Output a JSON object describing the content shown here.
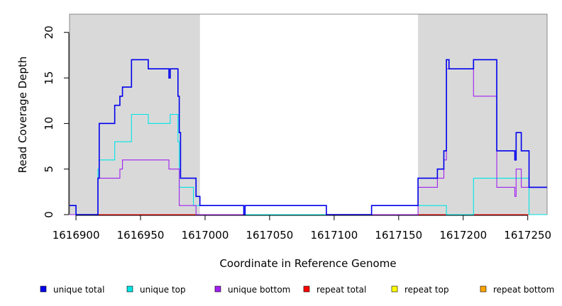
{
  "chart_data": {
    "type": "line",
    "title": "",
    "xlabel": "Coordinate in Reference Genome",
    "ylabel": "Read Coverage Depth",
    "xlim": [
      1616895,
      1617265
    ],
    "ylim": [
      0,
      22
    ],
    "x_ticks": [
      1616900,
      1616950,
      1617000,
      1617050,
      1617100,
      1617150,
      1617200,
      1617250
    ],
    "x_tick_labels": [
      "1616900",
      "1616950",
      "1617000",
      "1617050",
      "1617100",
      "1617150",
      "1617200",
      "1617250"
    ],
    "y_ticks": [
      0,
      5,
      10,
      15,
      20
    ],
    "y_tick_labels": [
      "0",
      "5",
      "10",
      "15",
      "20"
    ],
    "grid": false,
    "legend_position": "bottom",
    "shaded_regions": [
      {
        "x_start": 1616895,
        "x_end": 1616996,
        "color": "#d9d9d9"
      },
      {
        "x_start": 1617165,
        "x_end": 1617265,
        "color": "#d9d9d9"
      }
    ],
    "series": [
      {
        "name": "unique total",
        "color": "#0000ee",
        "step_points": [
          [
            1616895,
            1
          ],
          [
            1616900,
            1
          ],
          [
            1616900,
            0
          ],
          [
            1616917,
            0
          ],
          [
            1616917,
            4
          ],
          [
            1616918,
            4
          ],
          [
            1616918,
            10
          ],
          [
            1616930,
            10
          ],
          [
            1616930,
            12
          ],
          [
            1616934,
            12
          ],
          [
            1616934,
            13
          ],
          [
            1616936,
            13
          ],
          [
            1616936,
            14
          ],
          [
            1616943,
            14
          ],
          [
            1616943,
            17
          ],
          [
            1616956,
            17
          ],
          [
            1616956,
            16
          ],
          [
            1616972,
            16
          ],
          [
            1616972,
            15
          ],
          [
            1616973,
            15
          ],
          [
            1616973,
            16
          ],
          [
            1616979,
            16
          ],
          [
            1616979,
            13
          ],
          [
            1616980,
            13
          ],
          [
            1616980,
            9
          ],
          [
            1616981,
            9
          ],
          [
            1616981,
            4
          ],
          [
            1616993,
            4
          ],
          [
            1616993,
            2
          ],
          [
            1616996,
            2
          ],
          [
            1616996,
            1
          ],
          [
            1617030,
            1
          ],
          [
            1617030,
            0
          ],
          [
            1617031,
            0
          ],
          [
            1617031,
            1
          ],
          [
            1617094,
            1
          ],
          [
            1617094,
            0
          ],
          [
            1617129,
            0
          ],
          [
            1617129,
            1
          ],
          [
            1617165,
            1
          ],
          [
            1617165,
            4
          ],
          [
            1617180,
            4
          ],
          [
            1617180,
            5
          ],
          [
            1617185,
            5
          ],
          [
            1617185,
            7
          ],
          [
            1617187,
            7
          ],
          [
            1617187,
            17
          ],
          [
            1617189,
            17
          ],
          [
            1617189,
            16
          ],
          [
            1617208,
            16
          ],
          [
            1617208,
            17
          ],
          [
            1617226,
            17
          ],
          [
            1617226,
            7
          ],
          [
            1617240,
            7
          ],
          [
            1617240,
            6
          ],
          [
            1617241,
            6
          ],
          [
            1617241,
            9
          ],
          [
            1617245,
            9
          ],
          [
            1617245,
            7
          ],
          [
            1617251,
            7
          ],
          [
            1617251,
            3
          ],
          [
            1617265,
            3
          ]
        ]
      },
      {
        "name": "unique top",
        "color": "#00e5e5",
        "step_points": [
          [
            1616895,
            1
          ],
          [
            1616900,
            1
          ],
          [
            1616900,
            0
          ],
          [
            1616917,
            0
          ],
          [
            1616917,
            5
          ],
          [
            1616918,
            5
          ],
          [
            1616918,
            6
          ],
          [
            1616930,
            6
          ],
          [
            1616930,
            8
          ],
          [
            1616943,
            8
          ],
          [
            1616943,
            11
          ],
          [
            1616956,
            11
          ],
          [
            1616956,
            10
          ],
          [
            1616973,
            10
          ],
          [
            1616973,
            11
          ],
          [
            1616979,
            11
          ],
          [
            1616979,
            8
          ],
          [
            1616980,
            8
          ],
          [
            1616980,
            3
          ],
          [
            1616991,
            3
          ],
          [
            1616991,
            1
          ],
          [
            1617030,
            1
          ],
          [
            1617030,
            0
          ],
          [
            1617129,
            0
          ],
          [
            1617129,
            1
          ],
          [
            1617187,
            1
          ],
          [
            1617187,
            0
          ],
          [
            1617208,
            0
          ],
          [
            1617208,
            4
          ],
          [
            1617226,
            4
          ],
          [
            1617226,
            4
          ],
          [
            1617251,
            4
          ],
          [
            1617251,
            0
          ],
          [
            1617265,
            0
          ]
        ]
      },
      {
        "name": "unique bottom",
        "color": "#a020f0",
        "step_points": [
          [
            1616895,
            0
          ],
          [
            1616917,
            0
          ],
          [
            1616917,
            4
          ],
          [
            1616934,
            4
          ],
          [
            1616934,
            5
          ],
          [
            1616936,
            5
          ],
          [
            1616936,
            6
          ],
          [
            1616972,
            6
          ],
          [
            1616972,
            5
          ],
          [
            1616980,
            5
          ],
          [
            1616980,
            1
          ],
          [
            1616993,
            1
          ],
          [
            1616993,
            0
          ],
          [
            1617031,
            0
          ],
          [
            1617031,
            1
          ],
          [
            1617094,
            1
          ],
          [
            1617094,
            0
          ],
          [
            1617165,
            0
          ],
          [
            1617165,
            3
          ],
          [
            1617180,
            3
          ],
          [
            1617180,
            4
          ],
          [
            1617185,
            4
          ],
          [
            1617185,
            6
          ],
          [
            1617187,
            6
          ],
          [
            1617187,
            16
          ],
          [
            1617189,
            16
          ],
          [
            1617189,
            16
          ],
          [
            1617208,
            16
          ],
          [
            1617208,
            13
          ],
          [
            1617226,
            13
          ],
          [
            1617226,
            3
          ],
          [
            1617240,
            3
          ],
          [
            1617240,
            2
          ],
          [
            1617241,
            2
          ],
          [
            1617241,
            5
          ],
          [
            1617245,
            5
          ],
          [
            1617245,
            3
          ],
          [
            1617265,
            3
          ]
        ]
      },
      {
        "name": "repeat total",
        "color": "#ff0000",
        "step_points": [
          [
            1616895,
            0
          ],
          [
            1617265,
            0
          ]
        ]
      },
      {
        "name": "repeat top",
        "color": "#ffff00",
        "step_points": [
          [
            1616895,
            0
          ],
          [
            1617265,
            0
          ]
        ]
      },
      {
        "name": "repeat bottom",
        "color": "#ffa500",
        "step_points": [
          [
            1616895,
            0
          ],
          [
            1617265,
            0
          ]
        ]
      }
    ]
  }
}
